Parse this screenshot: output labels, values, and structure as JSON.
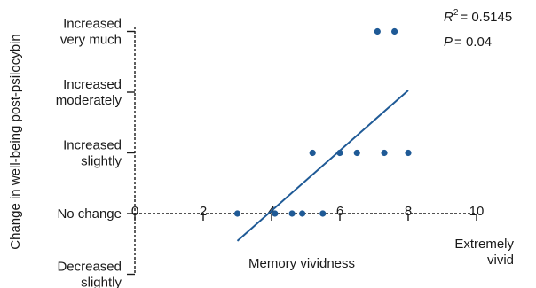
{
  "chart_data": {
    "type": "scatter",
    "title": "",
    "xlabel": "Memory vividness",
    "ylabel": "Change in well-being post-psilocybin",
    "xlim": [
      0,
      10
    ],
    "ylim": [
      -1,
      3
    ],
    "x_ticks": [
      0,
      2,
      4,
      6,
      8,
      10
    ],
    "x_end_label": [
      "Extremely",
      "vivid"
    ],
    "y_categories": [
      {
        "value": -1,
        "lines": [
          "Decreased",
          "slightly"
        ]
      },
      {
        "value": 0,
        "lines": [
          "No change"
        ]
      },
      {
        "value": 1,
        "lines": [
          "Increased",
          "slightly"
        ]
      },
      {
        "value": 2,
        "lines": [
          "Increased",
          "moderately"
        ]
      },
      {
        "value": 3,
        "lines": [
          "Increased",
          "very much"
        ]
      }
    ],
    "points": [
      {
        "x": 3.0,
        "y": 0
      },
      {
        "x": 4.1,
        "y": 0
      },
      {
        "x": 4.6,
        "y": 0
      },
      {
        "x": 4.9,
        "y": 0
      },
      {
        "x": 5.5,
        "y": 0
      },
      {
        "x": 5.2,
        "y": 1
      },
      {
        "x": 6.0,
        "y": 1
      },
      {
        "x": 6.5,
        "y": 1
      },
      {
        "x": 7.3,
        "y": 1
      },
      {
        "x": 8.0,
        "y": 1
      },
      {
        "x": 7.1,
        "y": 3
      },
      {
        "x": 7.6,
        "y": 3
      }
    ],
    "fit_line": {
      "x": [
        3.0,
        8.0
      ],
      "y": [
        -0.45,
        2.03
      ]
    },
    "stats": {
      "r2": "= 0.5145",
      "p": "= 0.04"
    },
    "colors": {
      "points": "#1f5a96",
      "fit": "#1f5a96",
      "axis": "#1a1a1a"
    }
  }
}
